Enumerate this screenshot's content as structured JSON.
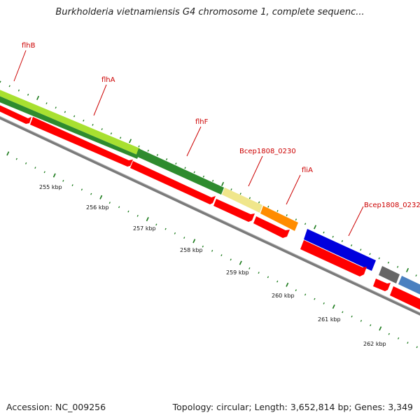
{
  "title": "Burkholderia vietnamiensis G4 chromosome 1, complete sequenc...",
  "accession": "Accession: NC_009256",
  "summary": "Topology: circular; Length: 3,652,814 bp; Genes: 3,349",
  "gene_labels": [
    {
      "text": "flhB"
    },
    {
      "text": "flhA"
    },
    {
      "text": "flhF"
    },
    {
      "text": "Bcep1808_0230"
    },
    {
      "text": "fliA"
    },
    {
      "text": "Bcep1808_0232"
    }
  ],
  "kbp_labels": [
    "255 kbp",
    "256 kbp",
    "257 kbp",
    "258 kbp",
    "259 kbp",
    "260 kbp",
    "261 kbp",
    "262 kbp"
  ],
  "colors": {
    "label_red": "#cc0000",
    "tick_green": "#1a7a1a",
    "backbone_gray": "#888888",
    "cds_red": "#ff0000",
    "flhB_lime": "#a8e030",
    "flhA_green": "#2e8b2e",
    "bcep0230_yellow": "#f0e68c",
    "fliA_orange": "#ff8c00",
    "bcep0232_blue": "#0000dd",
    "gray_gene": "#666666",
    "steel_blue": "#4a80c0"
  }
}
